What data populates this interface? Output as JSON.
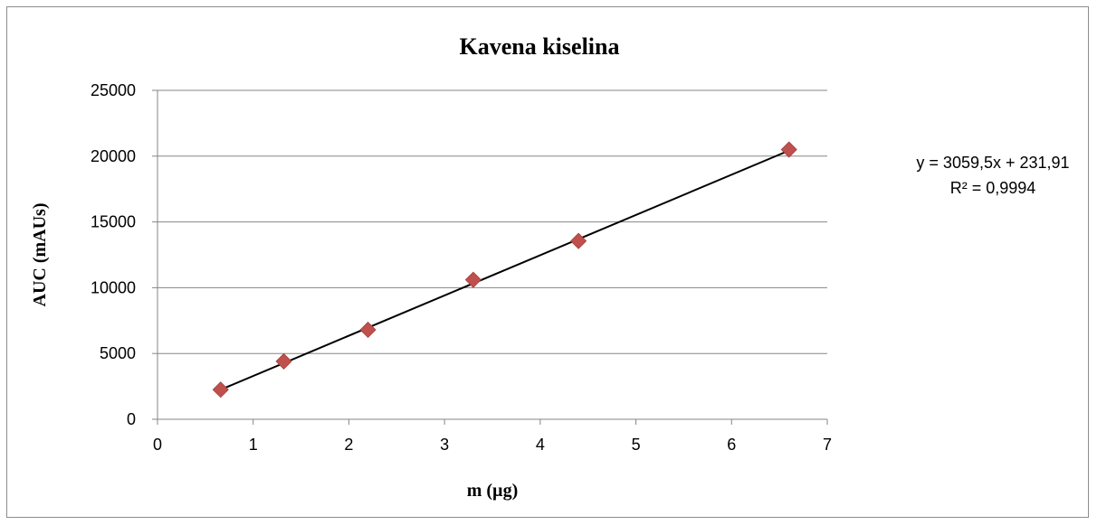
{
  "chart_data": {
    "type": "scatter",
    "title": "Kavena kiselina",
    "xlabel": "m (µg)",
    "ylabel": "AUC (mAUs)",
    "xlim": [
      0,
      7
    ],
    "ylim": [
      0,
      25000
    ],
    "x_ticks": [
      "0",
      "1",
      "2",
      "3",
      "4",
      "5",
      "6",
      "7"
    ],
    "y_ticks": [
      "0",
      "5000",
      "10000",
      "15000",
      "20000",
      "25000"
    ],
    "grid": "horizontal",
    "legend": "none",
    "series": [
      {
        "x": [
          0.66,
          1.32,
          2.2,
          3.3,
          4.4,
          6.6
        ],
        "y": [
          2250,
          4400,
          6800,
          10600,
          13550,
          20500
        ],
        "marker": "diamond",
        "color": "#c0504d"
      }
    ],
    "trendline": {
      "type": "linear",
      "slope": 3059.5,
      "intercept": 231.91,
      "x_range": [
        0.66,
        6.6
      ],
      "color": "#000000",
      "equation": "y = 3059,5x + 231,91",
      "r_squared": "R² = 0,9994"
    }
  }
}
